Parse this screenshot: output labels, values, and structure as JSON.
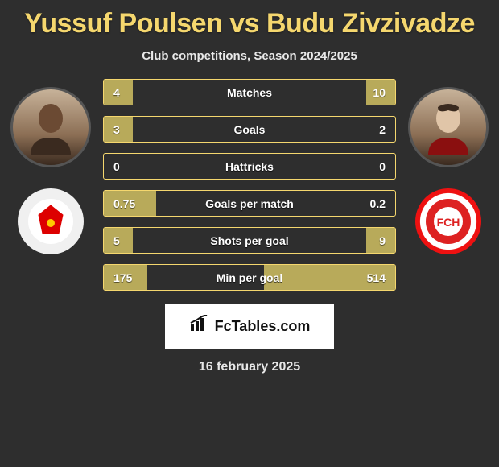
{
  "title": "Yussuf Poulsen vs Budu Zivzivadze",
  "subtitle": "Club competitions, Season 2024/2025",
  "date": "16 february 2025",
  "brand": {
    "text": "FcTables.com"
  },
  "colors": {
    "accent": "#f5d76e",
    "fill": "#b8aa5a",
    "bg": "#2e2e2e"
  },
  "player_left": {
    "name": "Yussuf Poulsen",
    "club": "RB Leipzig"
  },
  "player_right": {
    "name": "Budu Zivzivadze",
    "club": "1. FC Heidenheim"
  },
  "stats": [
    {
      "label": "Matches",
      "left_text": "4",
      "right_text": "10",
      "left_pct": 10,
      "right_pct": 10
    },
    {
      "label": "Goals",
      "left_text": "3",
      "right_text": "2",
      "left_pct": 10,
      "right_pct": 0
    },
    {
      "label": "Hattricks",
      "left_text": "0",
      "right_text": "0",
      "left_pct": 0,
      "right_pct": 0
    },
    {
      "label": "Goals per match",
      "left_text": "0.75",
      "right_text": "0.2",
      "left_pct": 18,
      "right_pct": 0
    },
    {
      "label": "Shots per goal",
      "left_text": "5",
      "right_text": "9",
      "left_pct": 10,
      "right_pct": 10
    },
    {
      "label": "Min per goal",
      "left_text": "175",
      "right_text": "514",
      "left_pct": 15,
      "right_pct": 45
    }
  ]
}
